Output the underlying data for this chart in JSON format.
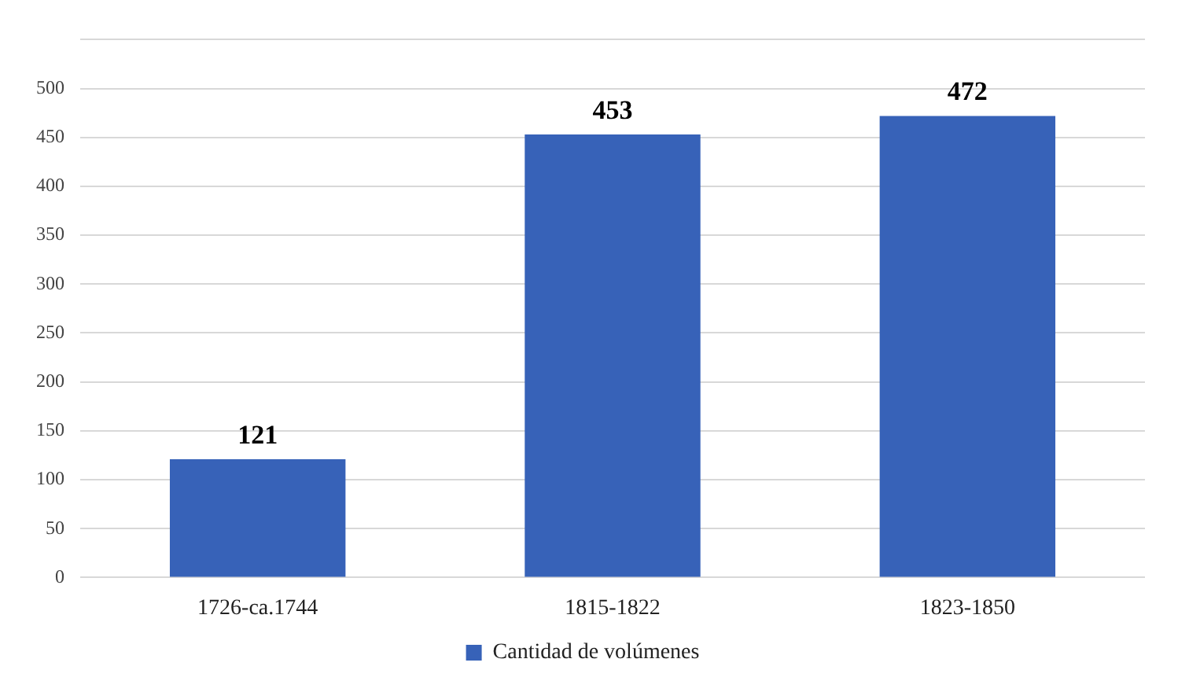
{
  "chart_data": {
    "type": "bar",
    "categories": [
      "1726-ca.1744",
      "1815-1822",
      "1823-1850"
    ],
    "series": [
      {
        "name": "Cantidad de volúmenes",
        "color": "#3762b8",
        "values": [
          121,
          453,
          472
        ]
      }
    ],
    "ylim": [
      0,
      550
    ],
    "yticks": [
      0,
      50,
      100,
      150,
      200,
      250,
      300,
      350,
      400,
      450,
      500,
      {
        "value": 550,
        "label": null
      }
    ],
    "grid": "y",
    "legend": "bottom",
    "data_labels": true
  }
}
